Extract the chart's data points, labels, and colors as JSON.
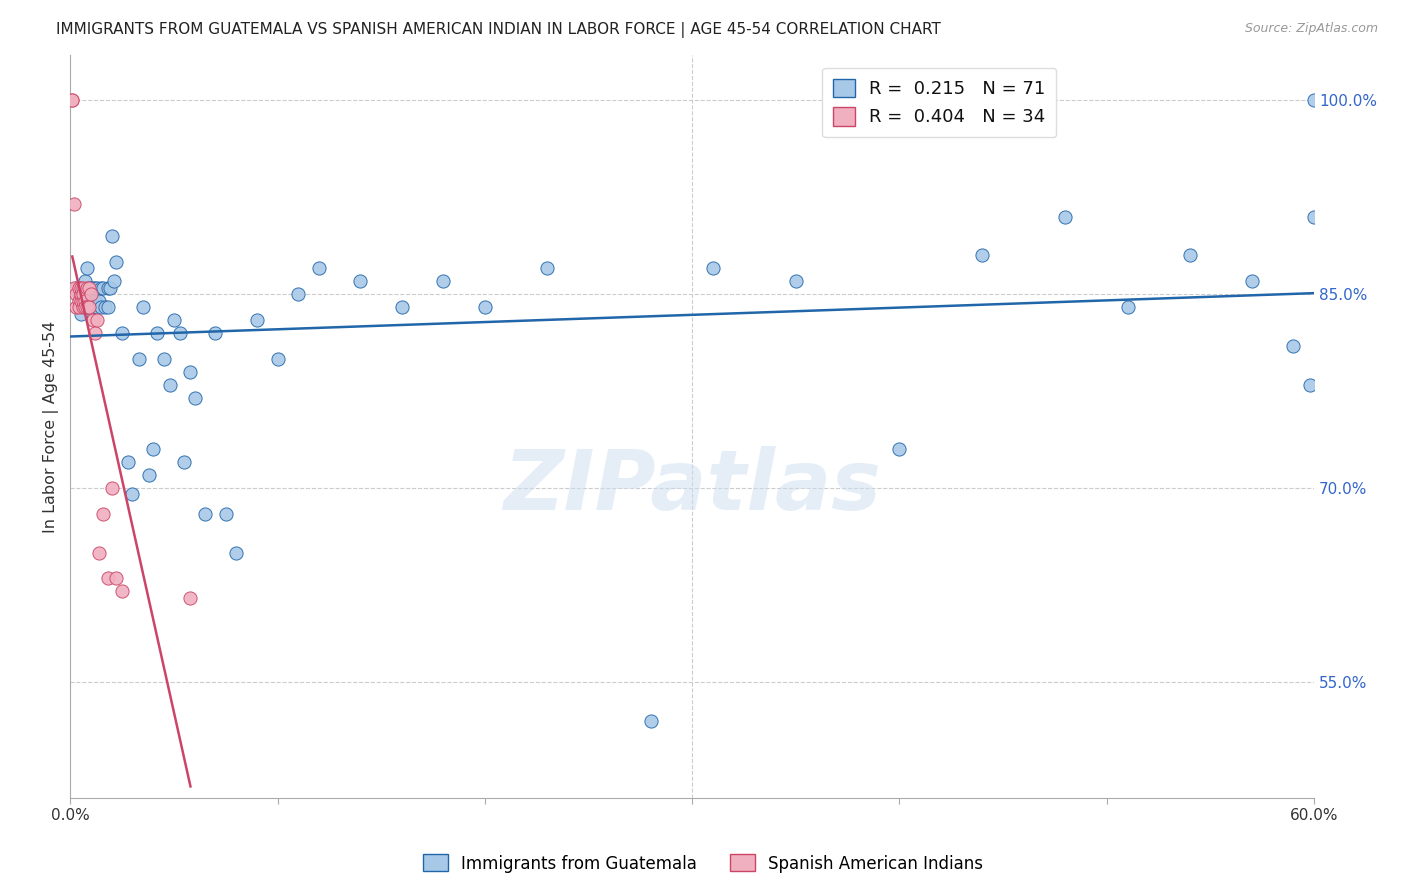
{
  "title": "IMMIGRANTS FROM GUATEMALA VS SPANISH AMERICAN INDIAN IN LABOR FORCE | AGE 45-54 CORRELATION CHART",
  "source": "Source: ZipAtlas.com",
  "ylabel": "In Labor Force | Age 45-54",
  "ytick_labels": [
    "100.0%",
    "85.0%",
    "70.0%",
    "55.0%"
  ],
  "ytick_values": [
    1.0,
    0.85,
    0.7,
    0.55
  ],
  "watermark_text": "ZIPatlas",
  "blue_color": "#a8c8e8",
  "blue_line_color": "#2266aa",
  "pink_color": "#f0b0c0",
  "pink_line_color": "#cc4466",
  "xlim": [
    0.0,
    0.6
  ],
  "ylim": [
    0.46,
    1.035
  ],
  "figsize": [
    14.06,
    8.92
  ],
  "dpi": 100,
  "bottom_legend_blue": "Immigrants from Guatemala",
  "bottom_legend_pink": "Spanish American Indians",
  "blue_scatter_x": [
    0.003,
    0.004,
    0.005,
    0.005,
    0.006,
    0.007,
    0.007,
    0.008,
    0.008,
    0.009,
    0.009,
    0.01,
    0.01,
    0.011,
    0.011,
    0.012,
    0.012,
    0.013,
    0.013,
    0.014,
    0.015,
    0.015,
    0.016,
    0.017,
    0.018,
    0.018,
    0.019,
    0.02,
    0.021,
    0.022,
    0.025,
    0.028,
    0.03,
    0.033,
    0.035,
    0.038,
    0.04,
    0.042,
    0.045,
    0.048,
    0.05,
    0.053,
    0.055,
    0.058,
    0.06,
    0.065,
    0.07,
    0.075,
    0.08,
    0.09,
    0.1,
    0.11,
    0.12,
    0.14,
    0.16,
    0.18,
    0.2,
    0.23,
    0.28,
    0.31,
    0.35,
    0.4,
    0.44,
    0.48,
    0.51,
    0.54,
    0.57,
    0.59,
    0.598,
    0.6,
    0.6
  ],
  "blue_scatter_y": [
    0.855,
    0.85,
    0.855,
    0.835,
    0.85,
    0.86,
    0.845,
    0.87,
    0.85,
    0.855,
    0.84,
    0.855,
    0.85,
    0.84,
    0.855,
    0.845,
    0.855,
    0.84,
    0.855,
    0.845,
    0.855,
    0.84,
    0.855,
    0.84,
    0.855,
    0.84,
    0.855,
    0.895,
    0.86,
    0.875,
    0.82,
    0.72,
    0.695,
    0.8,
    0.84,
    0.71,
    0.73,
    0.82,
    0.8,
    0.78,
    0.83,
    0.82,
    0.72,
    0.79,
    0.77,
    0.68,
    0.82,
    0.68,
    0.65,
    0.83,
    0.8,
    0.85,
    0.87,
    0.86,
    0.84,
    0.86,
    0.84,
    0.87,
    0.52,
    0.87,
    0.86,
    0.73,
    0.88,
    0.91,
    0.84,
    0.88,
    0.86,
    0.81,
    0.78,
    0.91,
    1.0
  ],
  "pink_scatter_x": [
    0.001,
    0.001,
    0.002,
    0.002,
    0.003,
    0.003,
    0.004,
    0.004,
    0.004,
    0.005,
    0.005,
    0.005,
    0.005,
    0.006,
    0.006,
    0.006,
    0.006,
    0.007,
    0.007,
    0.008,
    0.008,
    0.009,
    0.009,
    0.01,
    0.011,
    0.012,
    0.013,
    0.014,
    0.016,
    0.018,
    0.02,
    0.022,
    0.025,
    0.058
  ],
  "pink_scatter_y": [
    1.0,
    1.0,
    0.92,
    0.855,
    0.85,
    0.84,
    0.855,
    0.845,
    0.84,
    0.85,
    0.845,
    0.85,
    0.855,
    0.855,
    0.84,
    0.845,
    0.85,
    0.845,
    0.84,
    0.855,
    0.84,
    0.855,
    0.84,
    0.85,
    0.83,
    0.82,
    0.83,
    0.65,
    0.68,
    0.63,
    0.7,
    0.63,
    0.62,
    0.615
  ]
}
